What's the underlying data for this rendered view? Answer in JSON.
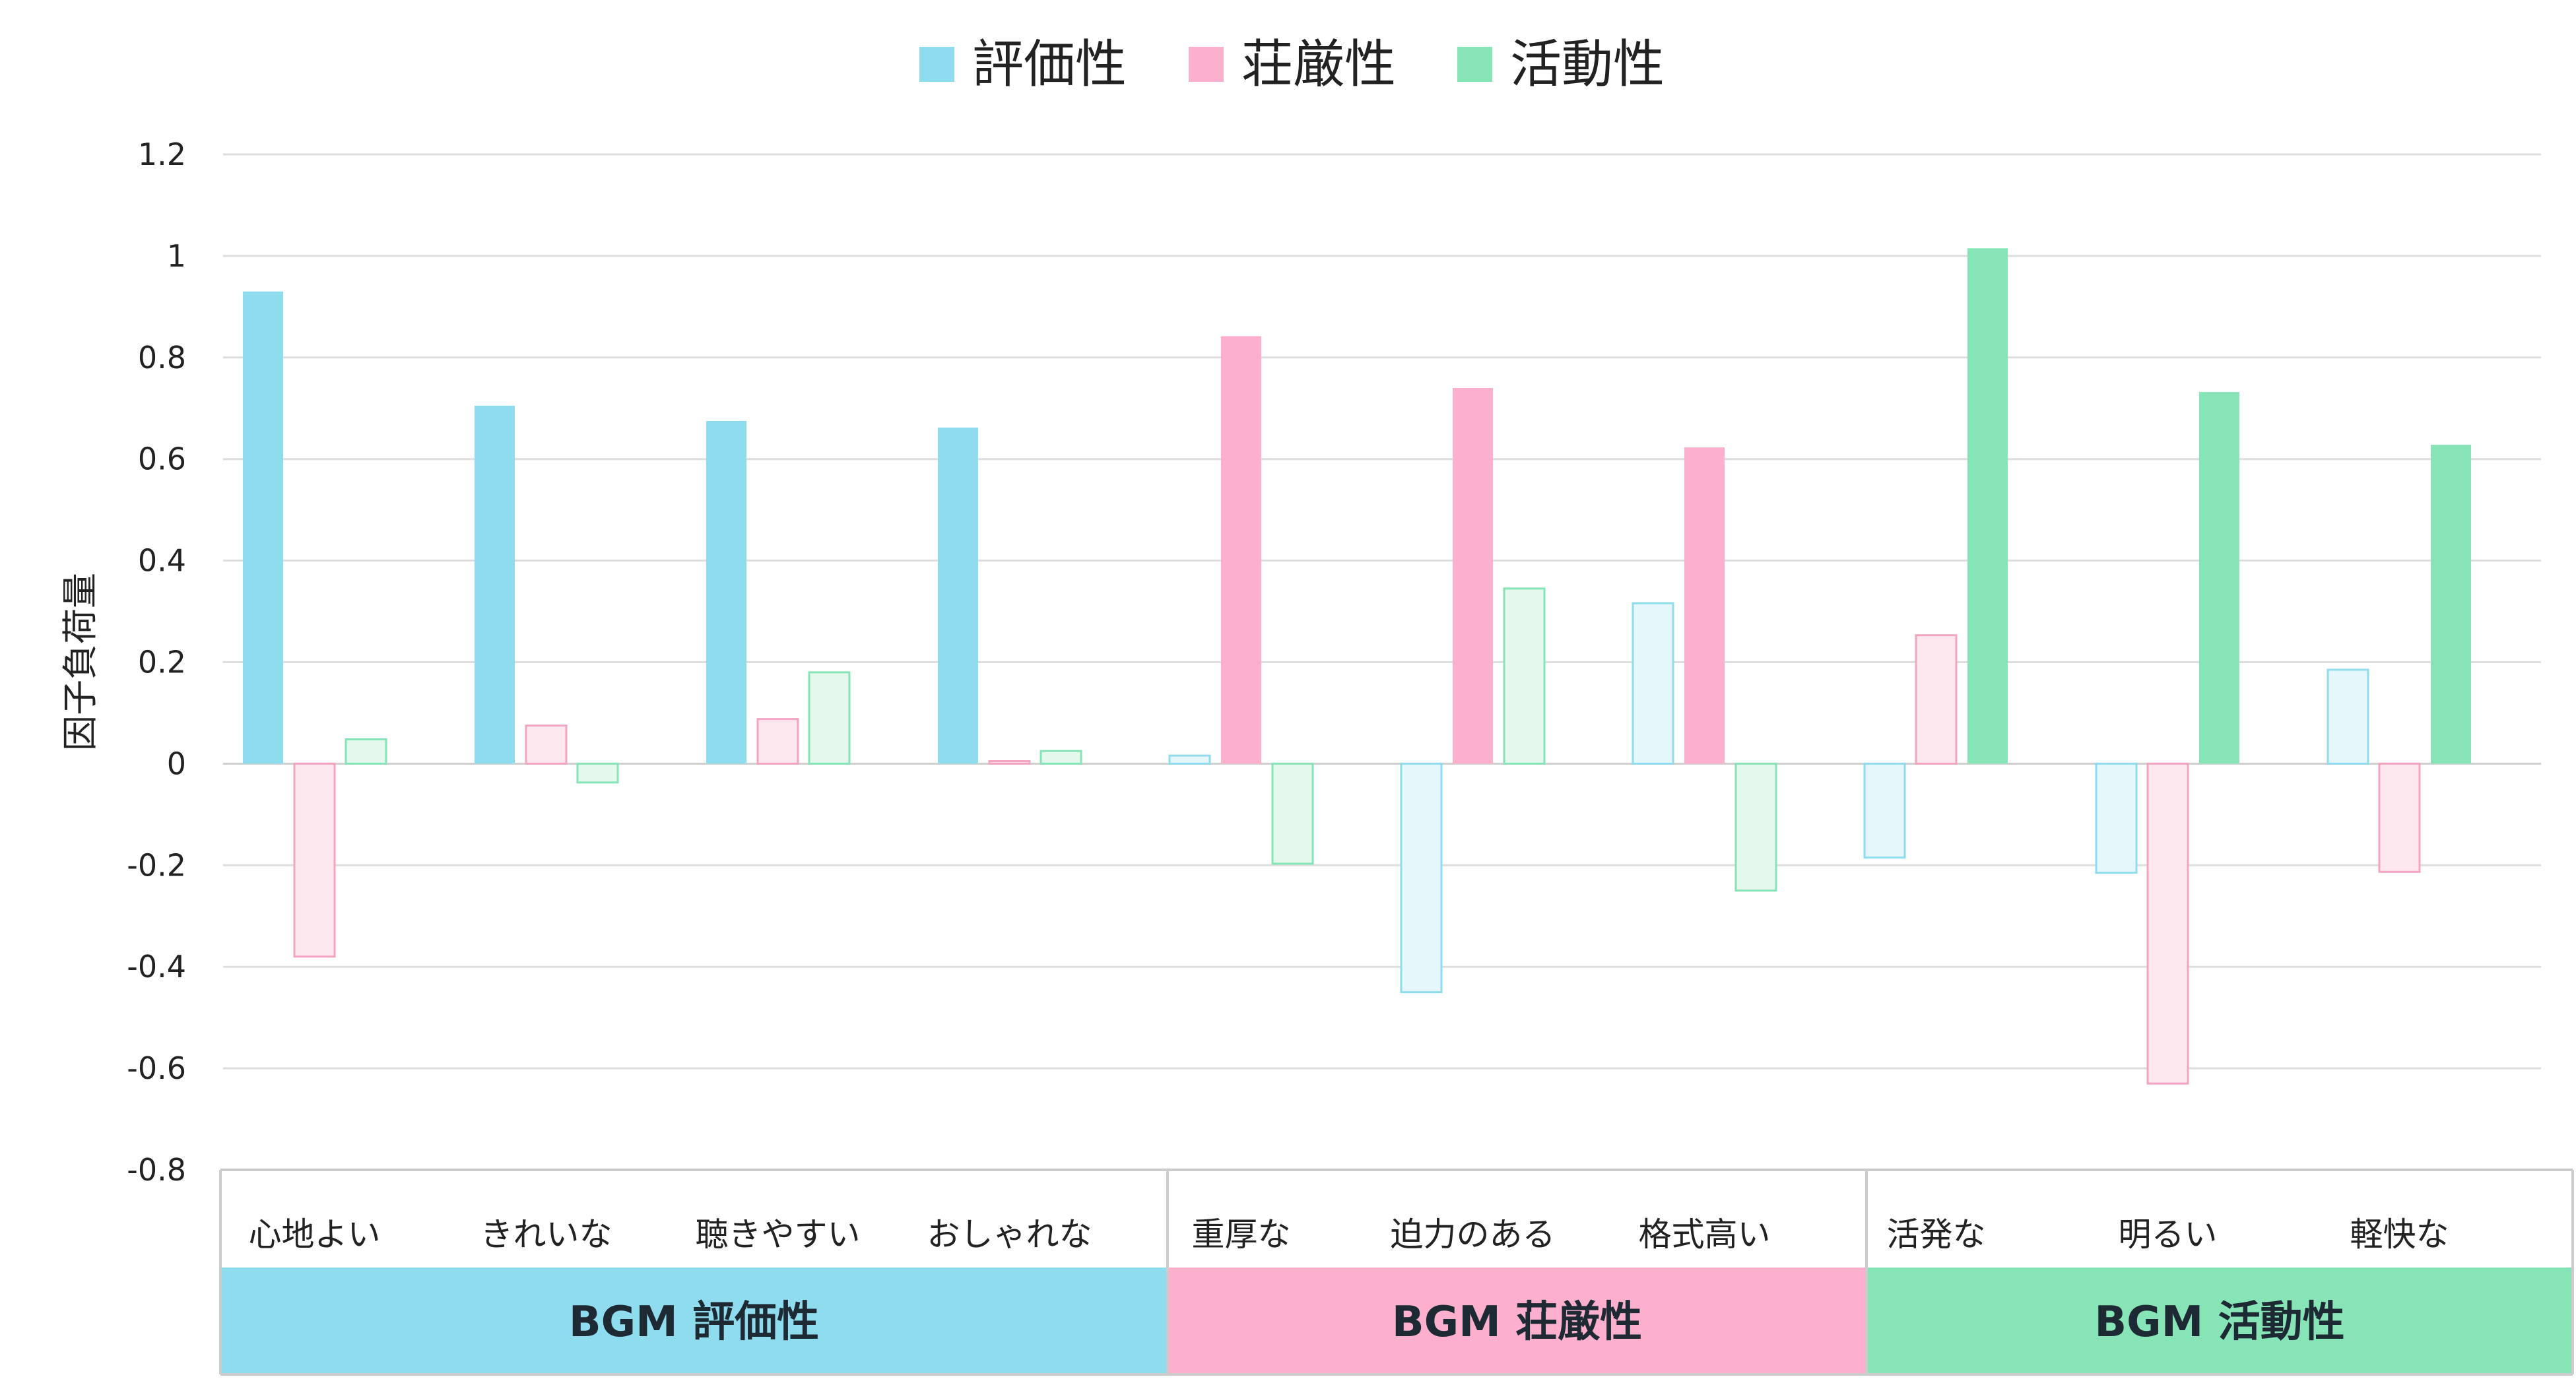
{
  "chart_data": {
    "type": "bar",
    "ylabel": "因子負荷量",
    "ylim": [
      -0.8,
      1.2
    ],
    "yticks": [
      1.2,
      1,
      0.8,
      0.6,
      0.4,
      0.2,
      0,
      -0.2,
      -0.4,
      -0.6,
      -0.8
    ],
    "ytick_labels": [
      "1.2",
      "1",
      "0.8",
      "0.6",
      "0.4",
      "0.2",
      "0",
      "-0.2",
      "-0.4",
      "-0.6",
      "-0.8"
    ],
    "grid": true,
    "legend_position": "top-center",
    "categories": [
      "心地よい",
      "きれいな",
      "聴きやすい",
      "おしゃれな",
      "重厚な",
      "迫力のある",
      "格式高い",
      "活発な",
      "明るい",
      "軽快な"
    ],
    "series": [
      {
        "name": "評価性",
        "color": "#8fdcee",
        "light": "#e6f7fc",
        "edge": "#8fdcee",
        "values": [
          0.93,
          0.705,
          0.675,
          0.662,
          0.016,
          -0.45,
          0.316,
          -0.185,
          -0.215,
          0.185
        ]
      },
      {
        "name": "荘厳性",
        "color": "#fcb0cd",
        "light": "#fde8f0",
        "edge": "#f2a4c2",
        "values": [
          -0.38,
          0.075,
          0.088,
          0.005,
          0.842,
          0.74,
          0.623,
          0.253,
          -0.63,
          -0.213
        ]
      },
      {
        "name": "活動性",
        "color": "#86e4b6",
        "light": "#e4f8ee",
        "edge": "#86e4b6",
        "values": [
          0.048,
          -0.037,
          0.18,
          0.025,
          -0.197,
          0.345,
          -0.25,
          1.015,
          0.732,
          0.628
        ]
      }
    ],
    "groups": [
      {
        "label": "BGM 評価性",
        "color": "#8fdcee",
        "series_index": 0,
        "category_indices": [
          0,
          1,
          2,
          3
        ]
      },
      {
        "label": "BGM 荘厳性",
        "color": "#fcb0cd",
        "series_index": 1,
        "category_indices": [
          4,
          5,
          6
        ]
      },
      {
        "label": "BGM 活動性",
        "color": "#86e4b6",
        "series_index": 2,
        "category_indices": [
          7,
          8,
          9
        ]
      }
    ]
  }
}
